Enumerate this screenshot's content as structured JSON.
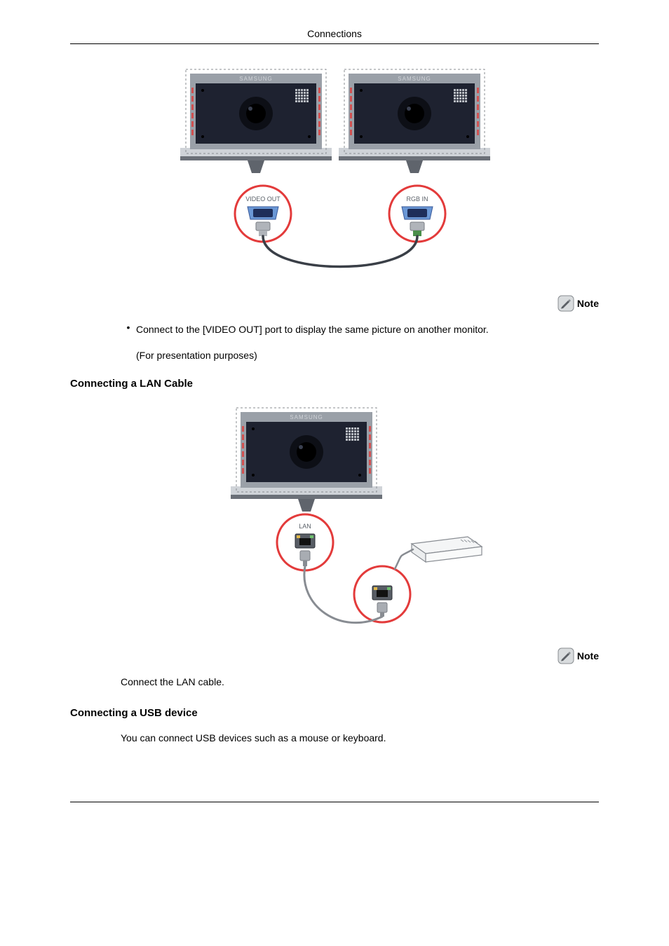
{
  "header": {
    "title": "Connections"
  },
  "diagram_video_out": {
    "monitor_label": "SAMSUNG",
    "left_port_label": "VIDEO OUT",
    "right_port_label": "RGB IN",
    "colors": {
      "monitor_frame": "#9aa0a8",
      "monitor_screen": "#1e2230",
      "monitor_stand": "#5f646c",
      "monitor_base_light": "#cfd3d8",
      "monitor_base_dark": "#6b7078",
      "monitor_slots": "#d05050",
      "monitor_grille": "#b8bcc2",
      "badge_fill": "#ffffff",
      "badge_stroke": "#e33b3b",
      "vga_shell": "#6b98d6",
      "vga_slot": "#1e2e5a",
      "plug_body": "#b0b4ba",
      "cable": "#3a3f47",
      "cable_green_end": "#4a8f4a",
      "label_text": "#5a6068"
    }
  },
  "note1": {
    "label": "Note",
    "bullet": "Connect to the [VIDEO OUT] port to display the same picture on another monitor.",
    "sub": "(For presentation purposes)"
  },
  "section_lan": {
    "heading": "Connecting a LAN Cable"
  },
  "diagram_lan": {
    "monitor_label": "SAMSUNG",
    "port_label": "LAN",
    "colors": {
      "monitor_frame": "#9aa0a8",
      "monitor_screen": "#1e2230",
      "badge_fill": "#ffffff",
      "badge_stroke": "#e33b3b",
      "rj45_body": "#585d65",
      "rj45_led1": "#e0b84a",
      "rj45_led2": "#6ec06e",
      "router_line": "#888c92",
      "cable": "#888c92"
    }
  },
  "note2": {
    "label": "Note",
    "body": "Connect the LAN cable."
  },
  "section_usb": {
    "heading": "Connecting a USB device",
    "body": "You can connect USB devices such as a mouse or keyboard."
  },
  "note_icon": {
    "bg": "#d9dcde",
    "border": "#8a8e92",
    "pencil": "#5c6066"
  }
}
